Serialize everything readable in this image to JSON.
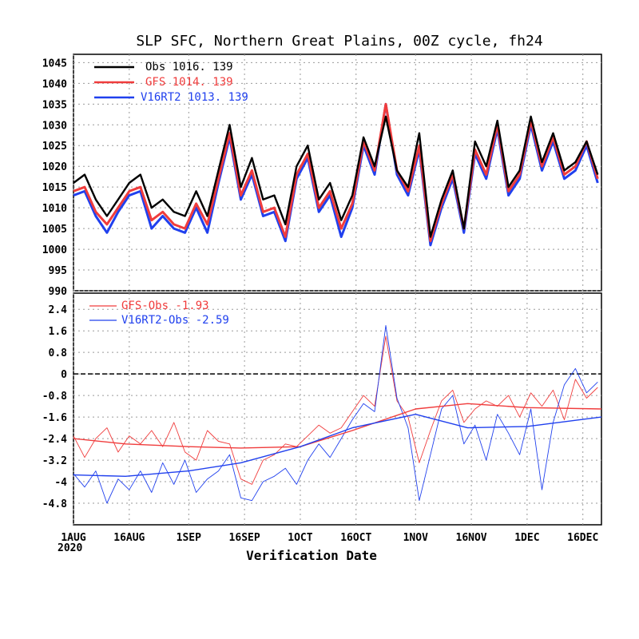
{
  "title": "SLP SFC, Northern Great Plains, 00Z cycle, fh24",
  "x_axis_title": "Verification Date",
  "year_label": "2020",
  "colors": {
    "obs": "#000000",
    "gfs": "#f03c3c",
    "v16": "#2040ee"
  },
  "top_legend": [
    {
      "name": "Obs",
      "mean": "1016.",
      "count": "139",
      "color": "#000000"
    },
    {
      "name": "GFS",
      "mean": "1014.",
      "count": "139",
      "color": "#f03c3c"
    },
    {
      "name": "V16RT2",
      "mean": "1013.",
      "count": "139",
      "color": "#2040ee"
    }
  ],
  "bottom_legend": [
    {
      "name": "GFS-Obs",
      "mean": "-1.93",
      "color": "#f03c3c"
    },
    {
      "name": "V16RT2-Obs",
      "mean": "-2.59",
      "color": "#2040ee"
    }
  ],
  "chart_data": [
    {
      "type": "line",
      "title": "SLP SFC, Northern Great Plains, 00Z cycle, fh24",
      "xlabel": "Verification Date",
      "ylabel": "",
      "x_range": [
        "2020-08-01",
        "2020-12-21"
      ],
      "ylim": [
        990,
        1047
      ],
      "y_ticks": [
        990,
        995,
        1000,
        1005,
        1010,
        1015,
        1020,
        1025,
        1030,
        1035,
        1040,
        1045
      ],
      "x_tick_labels": [
        "1AUG",
        "16AUG",
        "1SEP",
        "16SEP",
        "1OCT",
        "16OCT",
        "1NOV",
        "16NOV",
        "1DEC",
        "16DEC"
      ],
      "grid": true,
      "legend_position": "top-left",
      "series": [
        {
          "name": "Obs",
          "x": [
            "2020-08-01",
            "2020-08-04",
            "2020-08-07",
            "2020-08-10",
            "2020-08-13",
            "2020-08-16",
            "2020-08-19",
            "2020-08-22",
            "2020-08-25",
            "2020-08-28",
            "2020-08-31",
            "2020-09-03",
            "2020-09-06",
            "2020-09-09",
            "2020-09-12",
            "2020-09-15",
            "2020-09-18",
            "2020-09-21",
            "2020-09-24",
            "2020-09-27",
            "2020-09-30",
            "2020-10-03",
            "2020-10-06",
            "2020-10-09",
            "2020-10-12",
            "2020-10-15",
            "2020-10-18",
            "2020-10-21",
            "2020-10-24",
            "2020-10-27",
            "2020-10-30",
            "2020-11-02",
            "2020-11-05",
            "2020-11-08",
            "2020-11-11",
            "2020-11-14",
            "2020-11-17",
            "2020-11-20",
            "2020-11-23",
            "2020-11-26",
            "2020-11-29",
            "2020-12-02",
            "2020-12-05",
            "2020-12-08",
            "2020-12-11",
            "2020-12-14",
            "2020-12-17",
            "2020-12-20"
          ],
          "values": [
            1016,
            1018,
            1012,
            1008,
            1012,
            1016,
            1018,
            1010,
            1012,
            1009,
            1008,
            1014,
            1008,
            1019,
            1030,
            1015,
            1022,
            1012,
            1013,
            1006,
            1020,
            1025,
            1012,
            1016,
            1007,
            1013,
            1027,
            1020,
            1032,
            1019,
            1015,
            1028,
            1003,
            1012,
            1019,
            1005,
            1026,
            1020,
            1031,
            1015,
            1019,
            1032,
            1021,
            1028,
            1019,
            1021,
            1026,
            1018
          ]
        },
        {
          "name": "GFS",
          "x": [
            "2020-08-01",
            "2020-08-04",
            "2020-08-07",
            "2020-08-10",
            "2020-08-13",
            "2020-08-16",
            "2020-08-19",
            "2020-08-22",
            "2020-08-25",
            "2020-08-28",
            "2020-08-31",
            "2020-09-03",
            "2020-09-06",
            "2020-09-09",
            "2020-09-12",
            "2020-09-15",
            "2020-09-18",
            "2020-09-21",
            "2020-09-24",
            "2020-09-27",
            "2020-09-30",
            "2020-10-03",
            "2020-10-06",
            "2020-10-09",
            "2020-10-12",
            "2020-10-15",
            "2020-10-18",
            "2020-10-21",
            "2020-10-24",
            "2020-10-27",
            "2020-10-30",
            "2020-11-02",
            "2020-11-05",
            "2020-11-08",
            "2020-11-11",
            "2020-11-14",
            "2020-11-17",
            "2020-11-20",
            "2020-11-23",
            "2020-11-26",
            "2020-11-29",
            "2020-12-02",
            "2020-12-05",
            "2020-12-08",
            "2020-12-11",
            "2020-12-14",
            "2020-12-17",
            "2020-12-20"
          ],
          "values": [
            1014,
            1015,
            1009,
            1006,
            1010,
            1014,
            1015,
            1007,
            1009,
            1006,
            1005,
            1011,
            1006,
            1017,
            1028,
            1013,
            1019,
            1009,
            1010,
            1003,
            1018,
            1023,
            1010,
            1014,
            1005,
            1011,
            1026,
            1019,
            1035,
            1019,
            1014,
            1025,
            1002,
            1011,
            1018,
            1005,
            1024,
            1018,
            1030,
            1014,
            1018,
            1031,
            1020,
            1027,
            1018,
            1020,
            1026,
            1017
          ]
        },
        {
          "name": "V16RT2",
          "x": [
            "2020-08-01",
            "2020-08-04",
            "2020-08-07",
            "2020-08-10",
            "2020-08-13",
            "2020-08-16",
            "2020-08-19",
            "2020-08-22",
            "2020-08-25",
            "2020-08-28",
            "2020-08-31",
            "2020-09-03",
            "2020-09-06",
            "2020-09-09",
            "2020-09-12",
            "2020-09-15",
            "2020-09-18",
            "2020-09-21",
            "2020-09-24",
            "2020-09-27",
            "2020-09-30",
            "2020-10-03",
            "2020-10-06",
            "2020-10-09",
            "2020-10-12",
            "2020-10-15",
            "2020-10-18",
            "2020-10-21",
            "2020-10-24",
            "2020-10-27",
            "2020-10-30",
            "2020-11-02",
            "2020-11-05",
            "2020-11-08",
            "2020-11-11",
            "2020-11-14",
            "2020-11-17",
            "2020-11-20",
            "2020-11-23",
            "2020-11-26",
            "2020-11-29",
            "2020-12-02",
            "2020-12-05",
            "2020-12-08",
            "2020-12-11",
            "2020-12-14",
            "2020-12-17",
            "2020-12-20"
          ],
          "values": [
            1013,
            1014,
            1008,
            1004,
            1009,
            1013,
            1014,
            1005,
            1008,
            1005,
            1004,
            1010,
            1004,
            1016,
            1027,
            1012,
            1018,
            1008,
            1009,
            1002,
            1017,
            1022,
            1009,
            1013,
            1003,
            1010,
            1025,
            1018,
            1035,
            1018,
            1013,
            1024,
            1001,
            1010,
            1017,
            1004,
            1023,
            1017,
            1029,
            1013,
            1017,
            1030,
            1019,
            1026,
            1017,
            1019,
            1025,
            1016
          ]
        }
      ]
    },
    {
      "type": "line",
      "title": "",
      "xlabel": "Verification Date",
      "ylabel": "",
      "x_range": [
        "2020-08-01",
        "2020-12-21"
      ],
      "ylim": [
        -5.6,
        3.0
      ],
      "y_ticks": [
        -4.8,
        -4,
        -3.2,
        -2.4,
        -1.6,
        -0.8,
        0,
        0.8,
        1.6,
        2.4
      ],
      "y_tick_labels": [
        "-4.8",
        "-4",
        "-3.2",
        "-2.4",
        "-1.6",
        "-0.8",
        "0",
        "0.8",
        "1.6",
        "2.4"
      ],
      "x_tick_labels": [
        "1AUG",
        "16AUG",
        "1SEP",
        "16SEP",
        "1OCT",
        "16OCT",
        "1NOV",
        "16NOV",
        "1DEC",
        "16DEC"
      ],
      "grid": true,
      "legend_position": "top-left",
      "series": [
        {
          "name": "GFS-Obs",
          "x": [
            "2020-08-01",
            "2020-08-04",
            "2020-08-07",
            "2020-08-10",
            "2020-08-13",
            "2020-08-16",
            "2020-08-19",
            "2020-08-22",
            "2020-08-25",
            "2020-08-28",
            "2020-08-31",
            "2020-09-03",
            "2020-09-06",
            "2020-09-09",
            "2020-09-12",
            "2020-09-15",
            "2020-09-18",
            "2020-09-21",
            "2020-09-24",
            "2020-09-27",
            "2020-09-30",
            "2020-10-03",
            "2020-10-06",
            "2020-10-09",
            "2020-10-12",
            "2020-10-15",
            "2020-10-18",
            "2020-10-21",
            "2020-10-24",
            "2020-10-27",
            "2020-10-30",
            "2020-11-02",
            "2020-11-05",
            "2020-11-08",
            "2020-11-11",
            "2020-11-14",
            "2020-11-17",
            "2020-11-20",
            "2020-11-23",
            "2020-11-26",
            "2020-11-29",
            "2020-12-02",
            "2020-12-05",
            "2020-12-08",
            "2020-12-11",
            "2020-12-14",
            "2020-12-17",
            "2020-12-20"
          ],
          "values": [
            -2.3,
            -3.1,
            -2.4,
            -2.0,
            -2.9,
            -2.3,
            -2.6,
            -2.1,
            -2.7,
            -1.8,
            -2.9,
            -3.2,
            -2.1,
            -2.5,
            -2.6,
            -3.9,
            -4.1,
            -3.2,
            -3.0,
            -2.6,
            -2.7,
            -2.3,
            -1.9,
            -2.2,
            -2.0,
            -1.4,
            -0.8,
            -1.2,
            1.4,
            -1.0,
            -1.6,
            -3.3,
            -2.1,
            -1.0,
            -0.6,
            -1.8,
            -1.3,
            -1.0,
            -1.2,
            -0.8,
            -1.6,
            -0.7,
            -1.2,
            -0.6,
            -1.7,
            -0.2,
            -0.9,
            -0.5
          ]
        },
        {
          "name": "V16RT2-Obs",
          "x": [
            "2020-08-01",
            "2020-08-04",
            "2020-08-07",
            "2020-08-10",
            "2020-08-13",
            "2020-08-16",
            "2020-08-19",
            "2020-08-22",
            "2020-08-25",
            "2020-08-28",
            "2020-08-31",
            "2020-09-03",
            "2020-09-06",
            "2020-09-09",
            "2020-09-12",
            "2020-09-15",
            "2020-09-18",
            "2020-09-21",
            "2020-09-24",
            "2020-09-27",
            "2020-09-30",
            "2020-10-03",
            "2020-10-06",
            "2020-10-09",
            "2020-10-12",
            "2020-10-15",
            "2020-10-18",
            "2020-10-21",
            "2020-10-24",
            "2020-10-27",
            "2020-10-30",
            "2020-11-02",
            "2020-11-05",
            "2020-11-08",
            "2020-11-11",
            "2020-11-14",
            "2020-11-17",
            "2020-11-20",
            "2020-11-23",
            "2020-11-26",
            "2020-11-29",
            "2020-12-02",
            "2020-12-05",
            "2020-12-08",
            "2020-12-11",
            "2020-12-14",
            "2020-12-17",
            "2020-12-20"
          ],
          "values": [
            -3.7,
            -4.2,
            -3.6,
            -4.8,
            -3.9,
            -4.3,
            -3.6,
            -4.4,
            -3.3,
            -4.1,
            -3.2,
            -4.4,
            -3.9,
            -3.6,
            -3.0,
            -4.6,
            -4.7,
            -4.0,
            -3.8,
            -3.5,
            -4.1,
            -3.2,
            -2.6,
            -3.1,
            -2.4,
            -1.7,
            -1.1,
            -1.4,
            1.8,
            -0.9,
            -2.0,
            -4.7,
            -3.0,
            -1.3,
            -0.8,
            -2.6,
            -1.9,
            -3.2,
            -1.5,
            -2.2,
            -3.0,
            -1.3,
            -4.3,
            -1.8,
            -0.4,
            0.2,
            -0.7,
            -0.3
          ]
        },
        {
          "name": "GFS-Obs running mean",
          "x": [
            "2020-08-01",
            "2020-08-15",
            "2020-09-01",
            "2020-09-15",
            "2020-10-01",
            "2020-10-15",
            "2020-11-01",
            "2020-11-15",
            "2020-12-01",
            "2020-12-21"
          ],
          "values": [
            -2.4,
            -2.6,
            -2.7,
            -2.75,
            -2.7,
            -2.1,
            -1.3,
            -1.1,
            -1.25,
            -1.3
          ]
        },
        {
          "name": "V16RT2-Obs running mean",
          "x": [
            "2020-08-01",
            "2020-08-15",
            "2020-09-01",
            "2020-09-15",
            "2020-10-01",
            "2020-10-15",
            "2020-11-01",
            "2020-11-15",
            "2020-12-01",
            "2020-12-21"
          ],
          "values": [
            -3.75,
            -3.8,
            -3.6,
            -3.3,
            -2.7,
            -2.0,
            -1.5,
            -2.0,
            -1.95,
            -1.6
          ]
        }
      ]
    }
  ]
}
